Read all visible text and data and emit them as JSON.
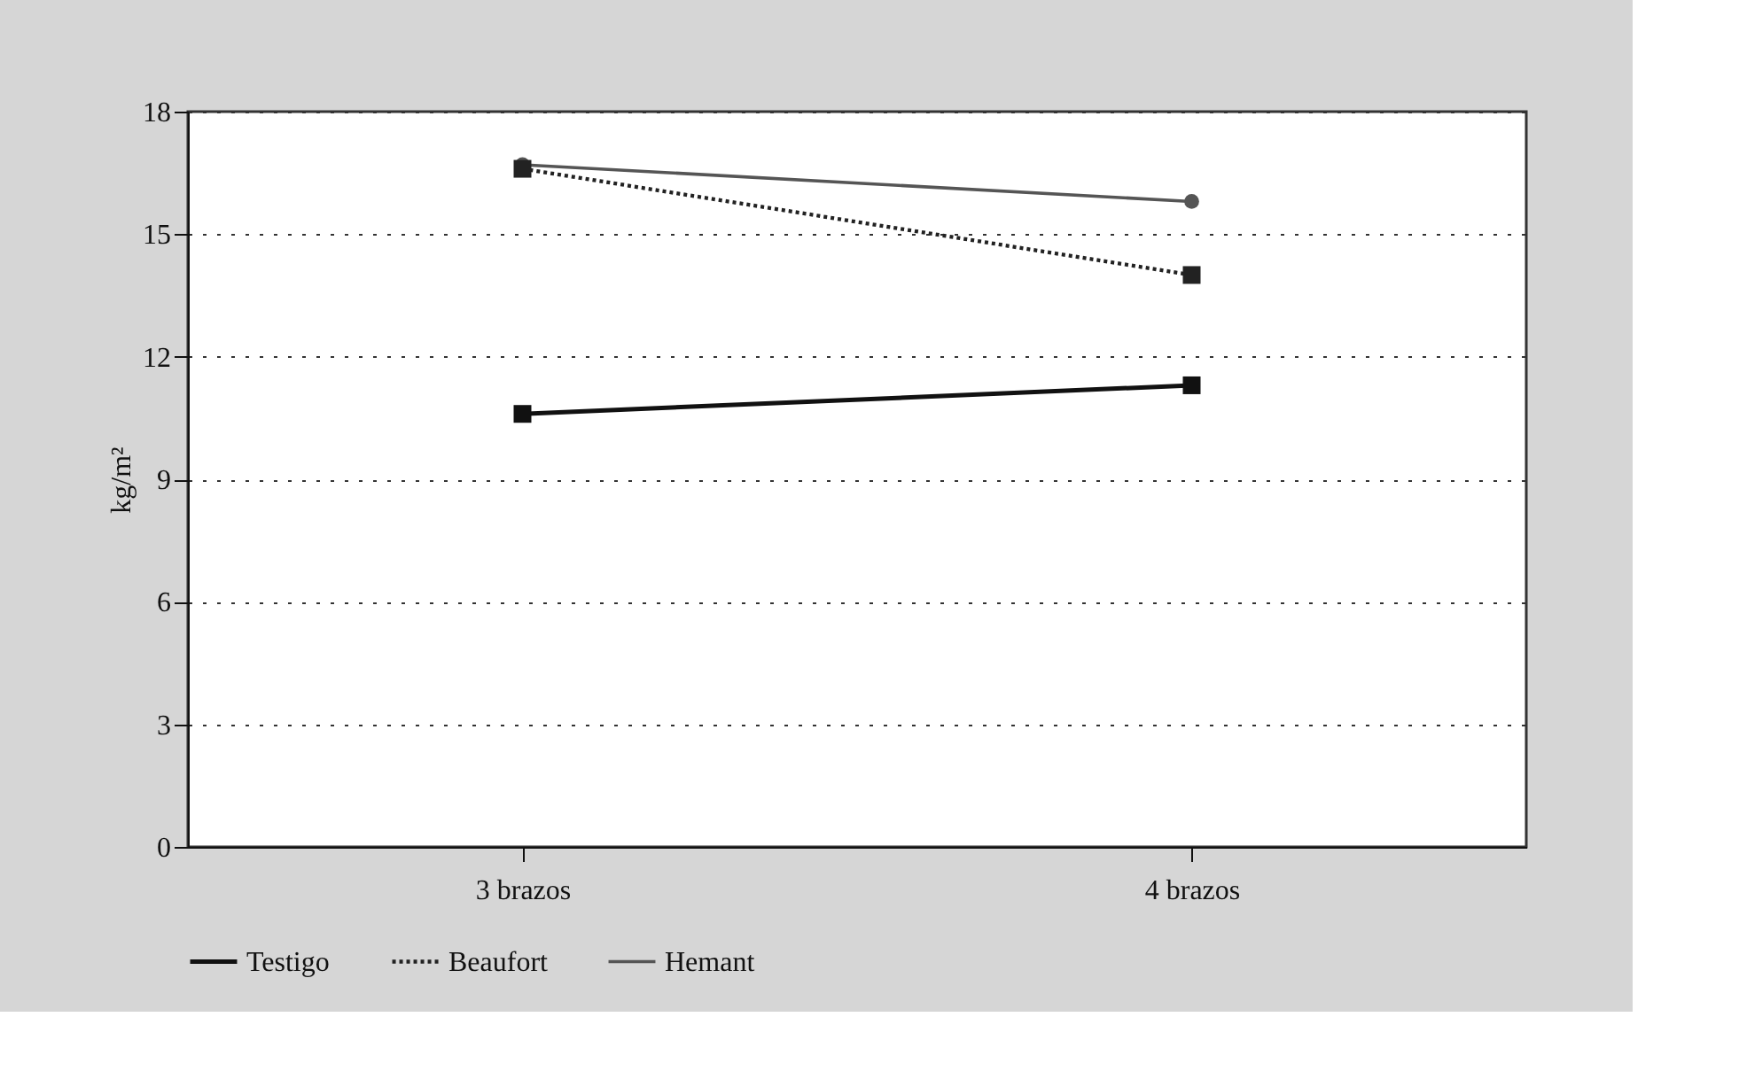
{
  "chart_data": {
    "type": "line",
    "ylabel": "kg/m²",
    "categories": [
      "3 brazos",
      "4 brazos"
    ],
    "series": [
      {
        "name": "Testigo",
        "color": "#111111",
        "values": [
          10.6,
          11.3
        ],
        "marker": "square",
        "line_style": "solid"
      },
      {
        "name": "Beaufort",
        "color": "#222222",
        "values": [
          16.6,
          14.0
        ],
        "marker": "square",
        "line_style": "dotted"
      },
      {
        "name": "Hemant",
        "color": "#555555",
        "values": [
          16.7,
          15.8
        ],
        "marker": "circle",
        "line_style": "solid"
      }
    ],
    "ylim": [
      0,
      18
    ],
    "yticks": [
      0,
      3,
      6,
      9,
      12,
      15,
      18
    ],
    "grid": "y",
    "legend": "bottom"
  }
}
